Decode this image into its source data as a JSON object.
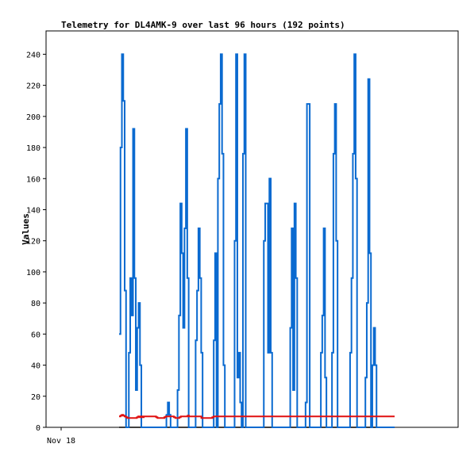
{
  "chart_data": {
    "type": "line",
    "title": "Telemetry for DL4AMK-9 over last 96 hours (192 points)",
    "ylabel": "Values",
    "xlabel": "",
    "x_tick_labels": [
      "Nov 18"
    ],
    "y_ticks": [
      0,
      20,
      40,
      60,
      80,
      100,
      120,
      140,
      160,
      180,
      200,
      220,
      240
    ],
    "ylim": [
      0,
      255
    ],
    "grid": false,
    "colors": {
      "series_blue": "#0a6ad0",
      "series_red": "#e01010",
      "series_black": "#000000"
    },
    "series": [
      {
        "color": "#0a6ad0",
        "values": [
          60,
          180,
          240,
          210,
          88,
          0,
          0,
          48,
          96,
          72,
          192,
          96,
          24,
          64,
          80,
          40,
          0,
          0,
          0,
          0,
          0,
          0,
          0,
          0,
          0,
          0,
          0,
          0,
          0,
          0,
          0,
          0,
          0,
          0,
          8,
          16,
          8,
          0,
          0,
          0,
          0,
          0,
          24,
          72,
          144,
          112,
          64,
          128,
          192,
          96,
          0,
          0,
          0,
          0,
          0,
          56,
          88,
          128,
          96,
          48,
          0,
          0,
          0,
          0,
          0,
          0,
          0,
          0,
          56,
          112,
          0,
          160,
          208,
          240,
          176,
          40,
          0,
          0,
          0,
          0,
          0,
          0,
          0,
          120,
          240,
          32,
          48,
          16,
          0,
          176,
          240,
          0,
          0,
          0,
          0,
          0,
          0,
          0,
          0,
          0,
          0,
          0,
          0,
          0,
          120,
          144,
          144,
          48,
          160,
          48,
          0,
          0,
          0,
          0,
          0,
          0,
          0,
          0,
          0,
          0,
          0,
          0,
          0,
          64,
          128,
          24,
          144,
          96,
          0,
          0,
          0,
          0,
          0,
          0,
          16,
          208,
          208,
          0,
          0,
          0,
          0,
          0,
          0,
          0,
          0,
          48,
          72,
          128,
          32,
          0,
          0,
          0,
          0,
          48,
          176,
          208,
          120,
          0,
          0,
          0,
          0,
          0,
          0,
          0,
          0,
          0,
          48,
          96,
          176,
          240,
          160,
          0,
          0,
          0,
          0,
          0,
          0,
          32,
          80,
          224,
          112,
          0,
          40,
          64,
          40,
          0,
          0,
          0,
          0,
          0,
          0,
          0,
          0,
          0,
          0,
          0,
          0,
          0
        ]
      },
      {
        "color": "#e01010",
        "values": [
          7,
          7.5,
          8,
          7.5,
          7,
          6.5,
          6,
          6,
          6,
          6,
          6,
          6,
          6,
          6.5,
          7,
          6.5,
          7,
          6.5,
          7,
          7,
          7,
          7,
          7,
          7,
          7,
          7,
          7,
          6.5,
          6,
          6,
          6,
          6,
          6,
          6.5,
          7,
          7,
          7,
          7,
          7,
          7,
          6.5,
          6,
          6,
          6,
          6.5,
          7,
          7,
          7,
          7,
          7,
          7.5,
          7,
          7,
          7,
          7,
          7,
          7,
          7,
          7,
          7,
          6,
          6,
          6,
          6,
          6,
          6,
          6,
          6,
          6.5,
          7,
          7,
          7,
          7,
          7,
          7,
          7,
          7,
          7,
          7,
          7,
          7,
          7,
          7,
          7,
          7,
          7,
          7,
          7,
          7,
          7,
          7,
          7,
          7,
          7,
          7,
          7,
          7,
          7,
          7,
          7,
          7,
          7,
          7,
          7,
          7,
          7,
          7,
          7,
          7,
          7,
          7,
          7,
          7,
          7,
          7,
          7,
          7,
          7,
          7,
          7,
          7,
          7,
          7,
          7,
          7,
          7,
          7,
          7,
          7,
          7,
          7,
          7,
          7,
          7,
          7,
          7,
          7,
          7,
          7,
          7,
          7,
          7,
          7,
          7,
          7,
          7,
          7,
          7,
          7,
          7,
          7,
          7,
          7,
          7,
          7,
          7,
          7,
          7,
          7,
          7,
          7,
          7,
          7,
          7,
          7,
          7,
          7,
          7,
          7,
          7,
          7,
          7,
          7,
          7,
          7,
          7,
          7,
          7,
          7,
          7,
          7,
          7,
          7,
          7,
          7,
          7,
          7,
          7,
          7,
          7,
          7,
          7,
          7,
          7,
          7,
          7,
          7,
          7,
          7,
          7,
          7
        ]
      },
      {
        "color": "#000000",
        "values": [
          0,
          0,
          0,
          0,
          0,
          0,
          0,
          0,
          0,
          0,
          0,
          0,
          0,
          0,
          0,
          0,
          0,
          0,
          0,
          0,
          0,
          0,
          0,
          0,
          0,
          0,
          0,
          0,
          0,
          0,
          0,
          0,
          0,
          0,
          0,
          0,
          0,
          0,
          0,
          0,
          0,
          0,
          0,
          0,
          0,
          0,
          0,
          0,
          0,
          0,
          0,
          0,
          0,
          0,
          0,
          0,
          0,
          0,
          0,
          0,
          0,
          0,
          0,
          0,
          0,
          0,
          0,
          0,
          0,
          0,
          0,
          0,
          0,
          0,
          0,
          0,
          0,
          0,
          0,
          0,
          0,
          0,
          0,
          0,
          0,
          0,
          0,
          0,
          0,
          0,
          0,
          0,
          0,
          0,
          0,
          0,
          0,
          0,
          0,
          0,
          0,
          0,
          0,
          0,
          0,
          0,
          0,
          0,
          0,
          0,
          0,
          0,
          0,
          0,
          0,
          0,
          0,
          0,
          0,
          0,
          0,
          0,
          0,
          0,
          0,
          0,
          0,
          0,
          0,
          0,
          0,
          0,
          0,
          0,
          0,
          0,
          0,
          0,
          0,
          0,
          0,
          0,
          0,
          0,
          0,
          0,
          0,
          0,
          0,
          0,
          0,
          0,
          0,
          0,
          0,
          0,
          0,
          0,
          0,
          0,
          0,
          0,
          0,
          0,
          0,
          0,
          0,
          0,
          0,
          0,
          0,
          0,
          0,
          0,
          0,
          0,
          0,
          0,
          0,
          0,
          0,
          0,
          0,
          0,
          0,
          0,
          0,
          0,
          0,
          0,
          0,
          0
        ]
      }
    ]
  }
}
